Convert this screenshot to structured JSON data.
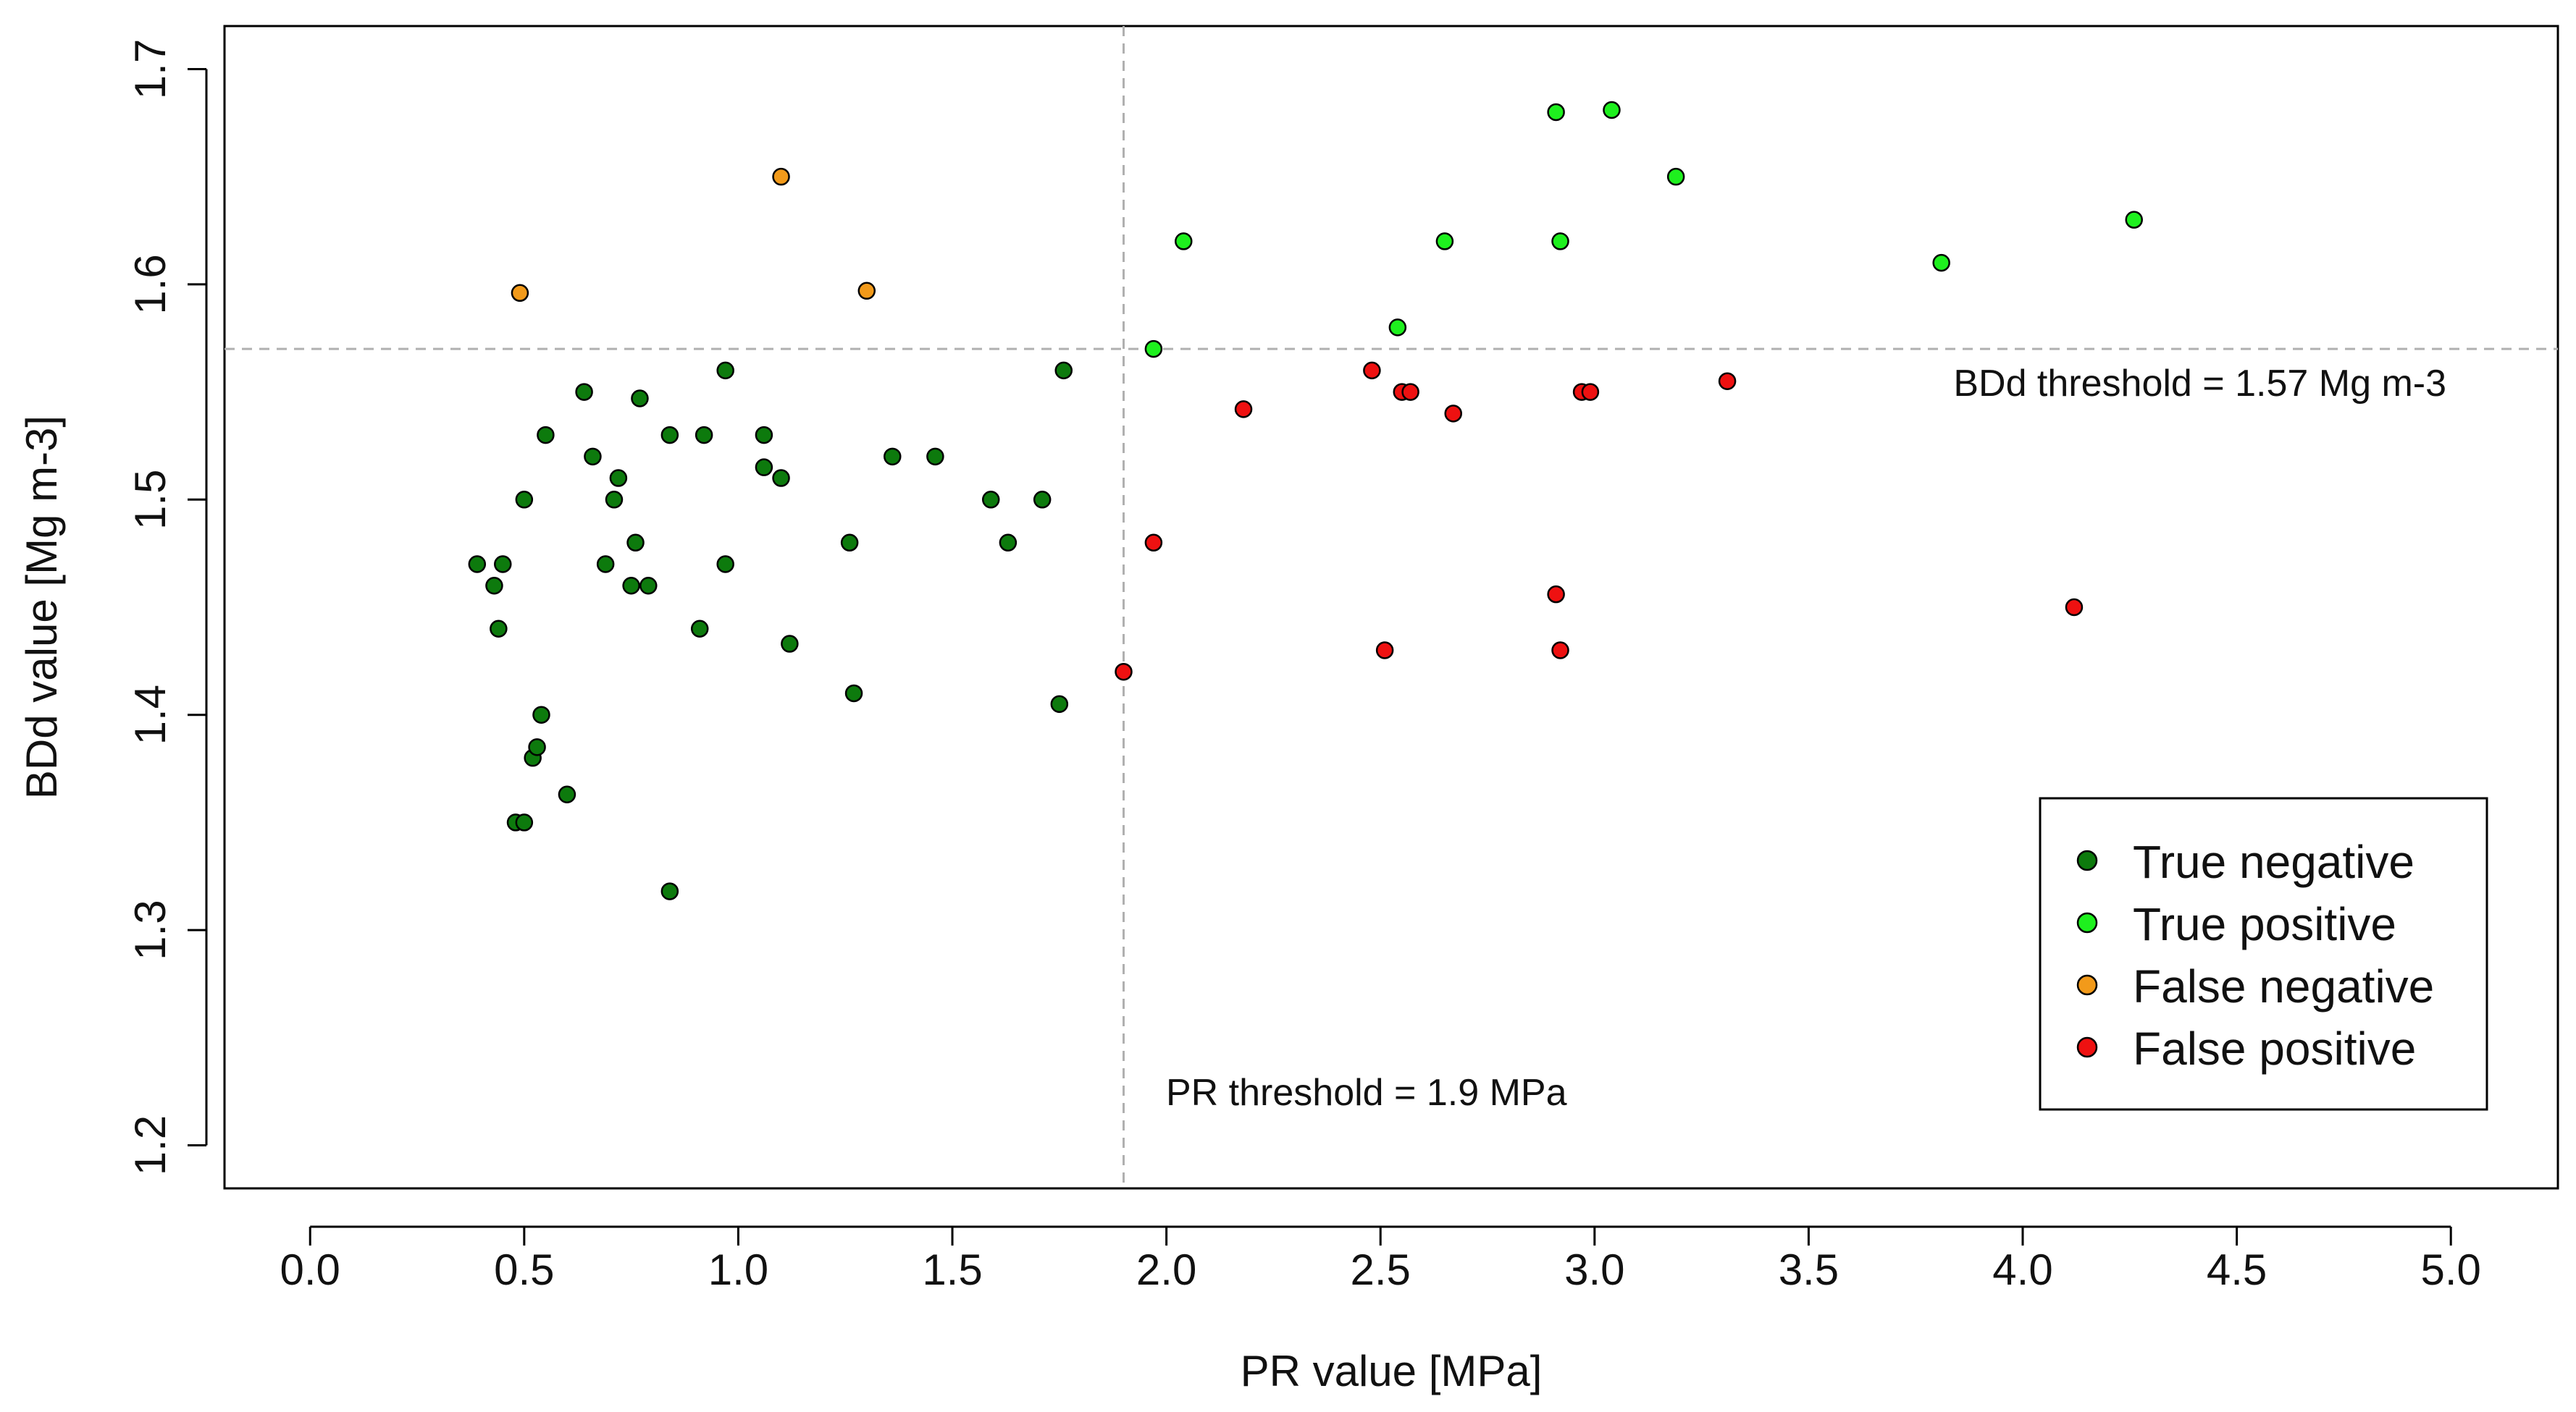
{
  "chart_data": {
    "type": "scatter",
    "title": "",
    "xlabel": "PR value [MPa]",
    "ylabel": "BDd value [Mg m-3]",
    "xlim": [
      -0.2,
      5.25
    ],
    "ylim": [
      1.18,
      1.72
    ],
    "x_ticks": [
      0.0,
      0.5,
      1.0,
      1.5,
      2.0,
      2.5,
      3.0,
      3.5,
      4.0,
      4.5,
      5.0
    ],
    "x_tick_labels": [
      "0.0",
      "0.5",
      "1.0",
      "1.5",
      "2.0",
      "2.5",
      "3.0",
      "3.5",
      "4.0",
      "4.5",
      "5.0"
    ],
    "y_ticks": [
      1.2,
      1.3,
      1.4,
      1.5,
      1.6,
      1.7
    ],
    "y_tick_labels": [
      "1.2",
      "1.3",
      "1.4",
      "1.5",
      "1.6",
      "1.7"
    ],
    "grid": false,
    "legend_position": "bottom-right",
    "thresholds": {
      "pr": {
        "value": 1.9,
        "label": "PR threshold = 1.9 MPa"
      },
      "bdd": {
        "value": 1.57,
        "label": "BDd threshold = 1.57 Mg m-3"
      }
    },
    "series": [
      {
        "name": "True negative",
        "color": "#0d7a0d",
        "points": [
          [
            0.39,
            1.47
          ],
          [
            0.43,
            1.46
          ],
          [
            0.44,
            1.44
          ],
          [
            0.45,
            1.47
          ],
          [
            0.48,
            1.35
          ],
          [
            0.5,
            1.35
          ],
          [
            0.5,
            1.5
          ],
          [
            0.52,
            1.38
          ],
          [
            0.53,
            1.385
          ],
          [
            0.54,
            1.4
          ],
          [
            0.55,
            1.53
          ],
          [
            0.6,
            1.363
          ],
          [
            0.64,
            1.55
          ],
          [
            0.66,
            1.52
          ],
          [
            0.69,
            1.47
          ],
          [
            0.71,
            1.5
          ],
          [
            0.72,
            1.51
          ],
          [
            0.75,
            1.46
          ],
          [
            0.76,
            1.48
          ],
          [
            0.77,
            1.547
          ],
          [
            0.79,
            1.46
          ],
          [
            0.84,
            1.53
          ],
          [
            0.84,
            1.318
          ],
          [
            0.91,
            1.44
          ],
          [
            0.92,
            1.53
          ],
          [
            0.97,
            1.56
          ],
          [
            0.97,
            1.47
          ],
          [
            1.06,
            1.53
          ],
          [
            1.06,
            1.515
          ],
          [
            1.1,
            1.51
          ],
          [
            1.12,
            1.433
          ],
          [
            1.26,
            1.48
          ],
          [
            1.27,
            1.41
          ],
          [
            1.36,
            1.52
          ],
          [
            1.46,
            1.52
          ],
          [
            1.59,
            1.5
          ],
          [
            1.63,
            1.48
          ],
          [
            1.71,
            1.5
          ],
          [
            1.75,
            1.405
          ],
          [
            1.76,
            1.56
          ]
        ]
      },
      {
        "name": "True positive",
        "color": "#1ef01e",
        "points": [
          [
            1.97,
            1.57
          ],
          [
            2.04,
            1.62
          ],
          [
            2.54,
            1.58
          ],
          [
            2.65,
            1.62
          ],
          [
            2.91,
            1.68
          ],
          [
            2.92,
            1.62
          ],
          [
            3.04,
            1.681
          ],
          [
            3.19,
            1.65
          ],
          [
            3.81,
            1.61
          ],
          [
            4.26,
            1.63
          ]
        ]
      },
      {
        "name": "False negative",
        "color": "#f29a1a",
        "points": [
          [
            0.49,
            1.596
          ],
          [
            1.1,
            1.65
          ],
          [
            1.3,
            1.597
          ]
        ]
      },
      {
        "name": "False positive",
        "color": "#ee1111",
        "points": [
          [
            1.9,
            1.42
          ],
          [
            1.97,
            1.48
          ],
          [
            2.18,
            1.542
          ],
          [
            2.48,
            1.56
          ],
          [
            2.51,
            1.43
          ],
          [
            2.55,
            1.55
          ],
          [
            2.57,
            1.55
          ],
          [
            2.67,
            1.54
          ],
          [
            2.91,
            1.456
          ],
          [
            2.92,
            1.43
          ],
          [
            2.97,
            1.55
          ],
          [
            2.99,
            1.55
          ],
          [
            3.31,
            1.555
          ],
          [
            4.12,
            1.45
          ]
        ]
      }
    ]
  }
}
